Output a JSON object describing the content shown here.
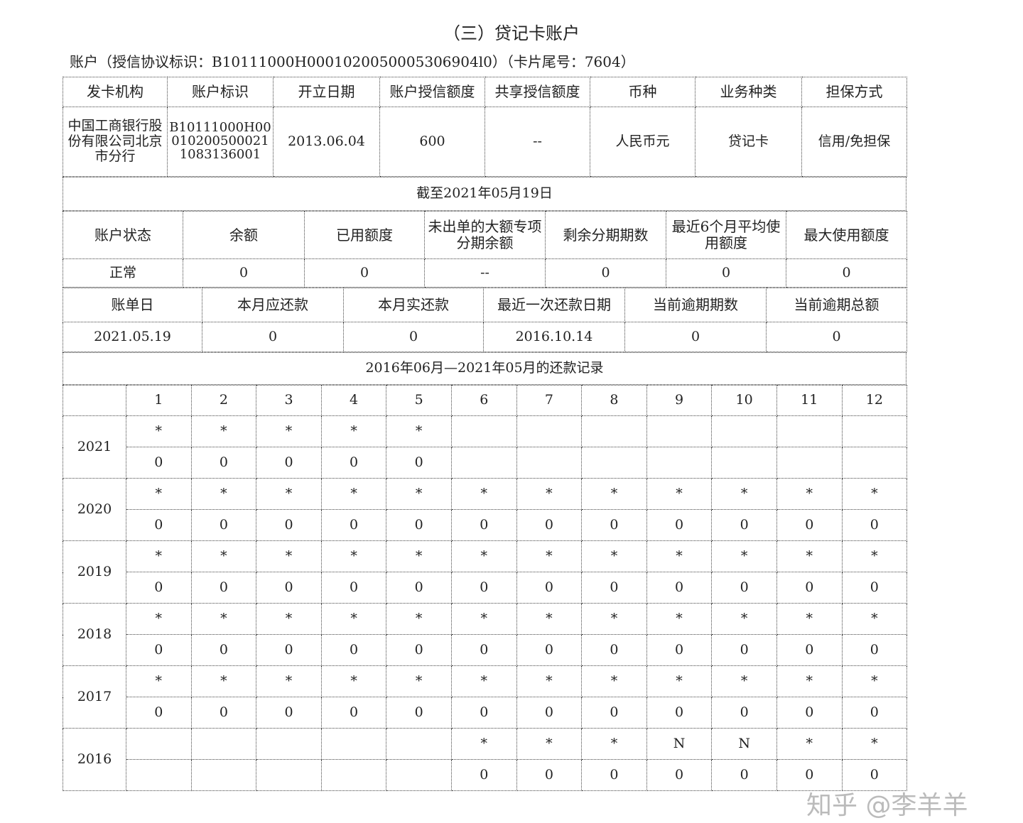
{
  "title": "（三）贷记卡账户",
  "account_line": "账户（授信协议标识：B10111000H0001020050005306904l0）（卡片尾号：7604）",
  "info": {
    "headers": [
      "发卡机构",
      "账户标识",
      "开立日期",
      "账户授信额度",
      "共享授信额度",
      "币种",
      "业务种类",
      "担保方式"
    ],
    "values": [
      "中国工商银行股份有限公司北京市分行",
      "B10111000H000102005000211083136001",
      "2013.06.04",
      "600",
      "--",
      "人民币元",
      "贷记卡",
      "信用/免担保"
    ]
  },
  "as_of": "截至2021年05月19日",
  "status": {
    "headers": [
      "账户状态",
      "余额",
      "已用额度",
      "未出单的大额专项分期余额",
      "剩余分期期数",
      "最近6个月平均使用额度",
      "最大使用额度"
    ],
    "values": [
      "正常",
      "0",
      "0",
      "--",
      "0",
      "0",
      "0"
    ]
  },
  "billing": {
    "headers": [
      "账单日",
      "本月应还款",
      "本月实还款",
      "最近一次还款日期",
      "当前逾期期数",
      "当前逾期总额"
    ],
    "values": [
      "2021.05.19",
      "0",
      "0",
      "2016.10.14",
      "0",
      "0"
    ]
  },
  "record_title": "2016年06月—2021年05月的还款记录",
  "months": [
    "1",
    "2",
    "3",
    "4",
    "5",
    "6",
    "7",
    "8",
    "9",
    "10",
    "11",
    "12"
  ],
  "years": [
    {
      "year": "2021",
      "status": [
        "*",
        "*",
        "*",
        "*",
        "*",
        "",
        "",
        "",
        "",
        "",
        "",
        ""
      ],
      "amount": [
        "0",
        "0",
        "0",
        "0",
        "0",
        "",
        "",
        "",
        "",
        "",
        "",
        ""
      ]
    },
    {
      "year": "2020",
      "status": [
        "*",
        "*",
        "*",
        "*",
        "*",
        "*",
        "*",
        "*",
        "*",
        "*",
        "*",
        "*"
      ],
      "amount": [
        "0",
        "0",
        "0",
        "0",
        "0",
        "0",
        "0",
        "0",
        "0",
        "0",
        "0",
        "0"
      ]
    },
    {
      "year": "2019",
      "status": [
        "*",
        "*",
        "*",
        "*",
        "*",
        "*",
        "*",
        "*",
        "*",
        "*",
        "*",
        "*"
      ],
      "amount": [
        "0",
        "0",
        "0",
        "0",
        "0",
        "0",
        "0",
        "0",
        "0",
        "0",
        "0",
        "0"
      ]
    },
    {
      "year": "2018",
      "status": [
        "*",
        "*",
        "*",
        "*",
        "*",
        "*",
        "*",
        "*",
        "*",
        "*",
        "*",
        "*"
      ],
      "amount": [
        "0",
        "0",
        "0",
        "0",
        "0",
        "0",
        "0",
        "0",
        "0",
        "0",
        "0",
        "0"
      ]
    },
    {
      "year": "2017",
      "status": [
        "*",
        "*",
        "*",
        "*",
        "*",
        "*",
        "*",
        "*",
        "*",
        "*",
        "*",
        "*"
      ],
      "amount": [
        "0",
        "0",
        "0",
        "0",
        "0",
        "0",
        "0",
        "0",
        "0",
        "0",
        "0",
        "0"
      ]
    },
    {
      "year": "2016",
      "status": [
        "",
        "",
        "",
        "",
        "",
        "*",
        "*",
        "*",
        "N",
        "N",
        "*",
        "*"
      ],
      "amount": [
        "",
        "",
        "",
        "",
        "",
        "0",
        "0",
        "0",
        "0",
        "0",
        "0",
        "0"
      ]
    }
  ],
  "watermark": "知乎 @李羊羊"
}
